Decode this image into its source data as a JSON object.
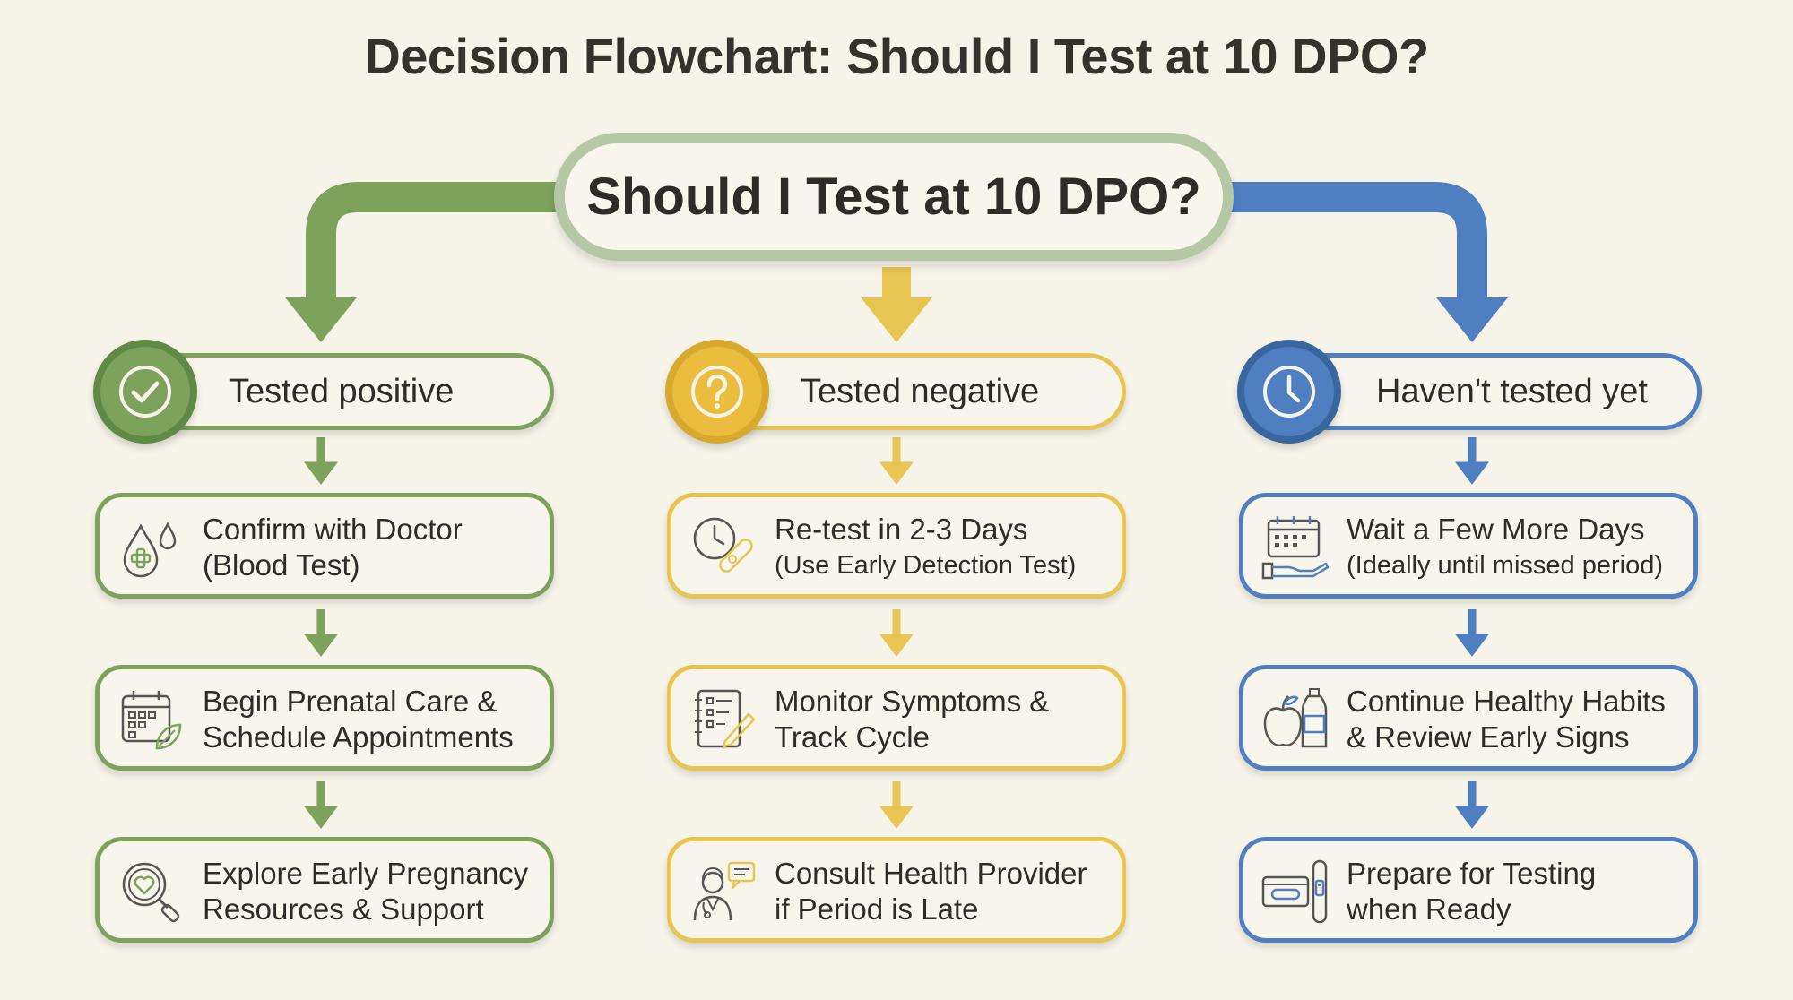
{
  "title": "Decision Flowchart: Should I Test at 10 DPO?",
  "root": {
    "label": "Should I Test at 10 DPO?"
  },
  "colors": {
    "green": "#7ca25c",
    "yellow": "#e8c453",
    "blue": "#4f7fc0",
    "root_border": "#b5c8a6",
    "background": "#f6f3e9"
  },
  "branches": [
    {
      "header": "Tested positive",
      "badge_icon": "checkmark-icon",
      "steps": [
        {
          "line1": "Confirm with Doctor",
          "line2": "(Blood Test)",
          "icon": "blood-drop-icon"
        },
        {
          "line1": "Begin Prenatal Care &",
          "line2": "Schedule Appointments",
          "icon": "calendar-leaf-icon"
        },
        {
          "line1": "Explore Early Pregnancy",
          "line2": "Resources & Support",
          "icon": "magnifier-heart-icon"
        }
      ]
    },
    {
      "header": "Tested negative",
      "badge_icon": "question-mark-icon",
      "steps": [
        {
          "line1": "Re-test in 2-3 Days",
          "line2": "(Use Early Detection Test)",
          "icon": "clock-test-icon"
        },
        {
          "line1": "Monitor Symptoms &",
          "line2": "Track Cycle",
          "icon": "notebook-pen-icon"
        },
        {
          "line1": "Consult Health Provider",
          "line2": "if Period is Late",
          "icon": "doctor-chat-icon"
        }
      ]
    },
    {
      "header": "Haven't tested yet",
      "badge_icon": "clock-icon",
      "steps": [
        {
          "line1": "Wait a Few More Days",
          "line2": "(Ideally until missed period)",
          "icon": "calendar-hand-icon"
        },
        {
          "line1": "Continue Healthy Habits",
          "line2": "& Review Early Signs",
          "icon": "apple-bottle-icon"
        },
        {
          "line1": "Prepare for Testing",
          "line2": "when Ready",
          "icon": "test-kit-icon"
        }
      ]
    }
  ]
}
